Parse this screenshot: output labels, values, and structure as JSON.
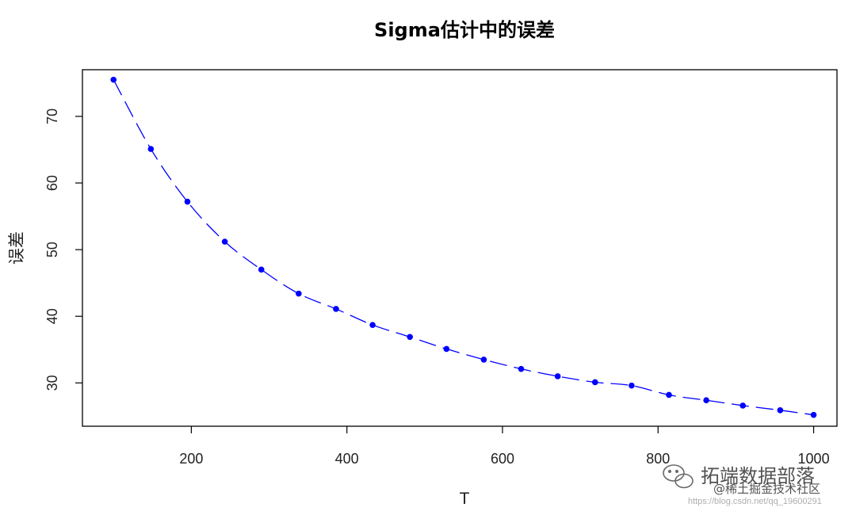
{
  "chart_data": {
    "type": "line",
    "title": "Sigma估计中的误差",
    "xlabel": "T",
    "ylabel": "误差",
    "xlim": [
      60,
      1030
    ],
    "ylim": [
      23.5,
      77
    ],
    "x_ticks": [
      200,
      400,
      600,
      800,
      1000
    ],
    "y_ticks": [
      30,
      40,
      50,
      60,
      70
    ],
    "x_tick_labels": [
      "200",
      "400",
      "600",
      "800",
      "1000"
    ],
    "y_tick_labels": [
      "30",
      "40",
      "50",
      "60",
      "70"
    ],
    "grid": false,
    "line_style": "dashed",
    "series": [
      {
        "color": "#0000ff",
        "x": [
          100,
          148,
          195,
          243,
          290,
          338,
          386,
          433,
          481,
          528,
          576,
          624,
          671,
          719,
          766,
          814,
          862,
          909,
          957,
          1000
        ],
        "y": [
          75.5,
          65.1,
          57.2,
          51.2,
          47.0,
          43.4,
          41.1,
          38.7,
          36.9,
          35.1,
          33.5,
          32.1,
          31.0,
          30.1,
          29.6,
          28.2,
          27.4,
          26.6,
          25.9,
          25.2
        ]
      }
    ]
  },
  "watermark": {
    "main": "拓端数据部落",
    "sub": "@稀土掘金技术社区",
    "url": "https://blog.csdn.net/qq_19600291",
    "icon": "wechat-icon"
  }
}
